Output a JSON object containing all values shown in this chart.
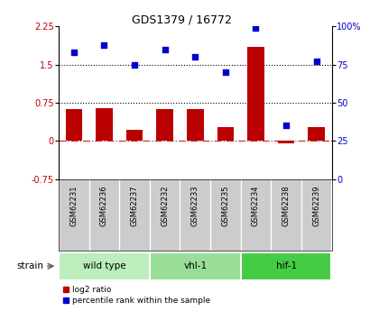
{
  "title": "GDS1379 / 16772",
  "samples": [
    "GSM62231",
    "GSM62236",
    "GSM62237",
    "GSM62232",
    "GSM62233",
    "GSM62235",
    "GSM62234",
    "GSM62238",
    "GSM62239"
  ],
  "log2_ratio": [
    0.62,
    0.65,
    0.22,
    0.62,
    0.62,
    0.28,
    1.85,
    -0.04,
    0.27
  ],
  "percentile_rank": [
    83,
    88,
    75,
    85,
    80,
    70,
    99,
    35,
    77
  ],
  "groups": [
    {
      "label": "wild type",
      "start": 0,
      "end": 3,
      "color": "#bbeebb"
    },
    {
      "label": "vhl-1",
      "start": 3,
      "end": 6,
      "color": "#99dd99"
    },
    {
      "label": "hif-1",
      "start": 6,
      "end": 9,
      "color": "#44cc44"
    }
  ],
  "ylim_left": [
    -0.75,
    2.25
  ],
  "ylim_right": [
    0,
    100
  ],
  "yticks_left": [
    -0.75,
    0,
    0.75,
    1.5,
    2.25
  ],
  "yticks_right": [
    0,
    25,
    50,
    75,
    100
  ],
  "hlines": [
    0.75,
    1.5
  ],
  "bar_color": "#bb0000",
  "scatter_color": "#0000cc",
  "sample_bg": "#cccccc",
  "background_color": "#ffffff",
  "strain_label": "strain",
  "legend_items": [
    {
      "label": "log2 ratio",
      "color": "#bb0000"
    },
    {
      "label": "percentile rank within the sample",
      "color": "#0000cc"
    }
  ]
}
